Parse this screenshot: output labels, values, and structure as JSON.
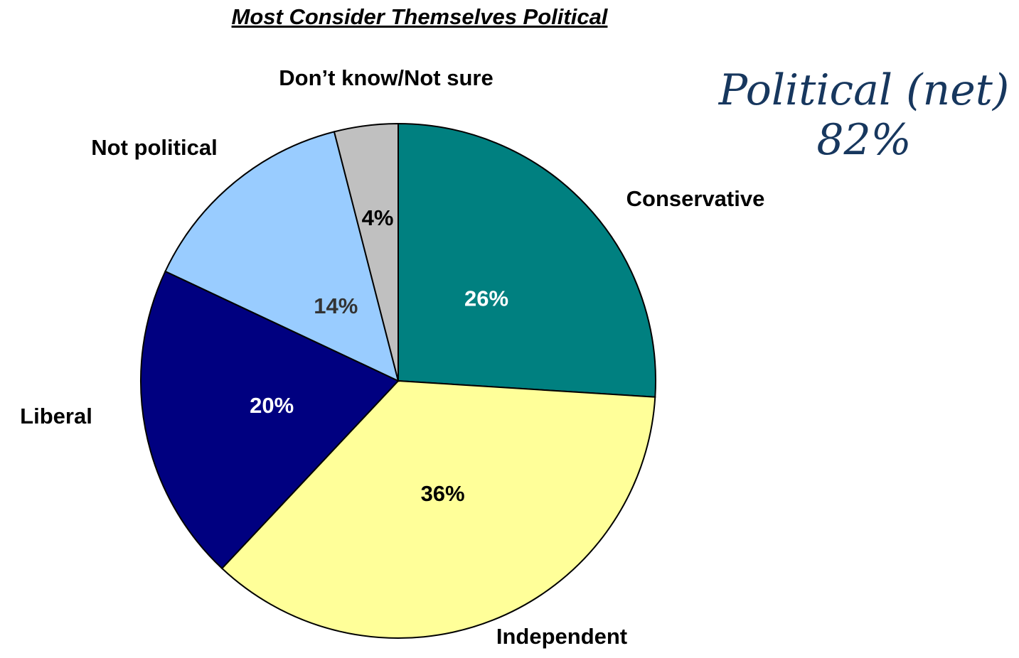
{
  "chart_data": {
    "type": "pie",
    "title": "Most Consider Themselves Political",
    "slices": [
      {
        "label": "Conservative",
        "value": 26,
        "value_label": "26%",
        "color": "#008080",
        "value_label_color": "#ffffff"
      },
      {
        "label": "Independent",
        "value": 36,
        "value_label": "36%",
        "color": "#ffff99",
        "value_label_color": "#000000"
      },
      {
        "label": "Liberal",
        "value": 20,
        "value_label": "20%",
        "color": "#000080",
        "value_label_color": "#ffffff"
      },
      {
        "label": "Not political",
        "value": 14,
        "value_label": "14%",
        "color": "#99ccff",
        "value_label_color": "#333333"
      },
      {
        "label": "Don’t know/Not sure",
        "value": 4,
        "value_label": "4%",
        "color": "#c0c0c0",
        "value_label_color": "#000000"
      }
    ],
    "start_angle": "12 o'clock",
    "direction": "clockwise"
  },
  "annotation": {
    "line1": "Political (net)",
    "line2": "82%",
    "color": "#17375e"
  }
}
